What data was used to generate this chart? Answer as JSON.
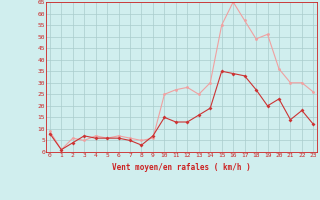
{
  "x": [
    0,
    1,
    2,
    3,
    4,
    5,
    6,
    7,
    8,
    9,
    10,
    11,
    12,
    13,
    14,
    15,
    16,
    17,
    18,
    19,
    20,
    21,
    22,
    23
  ],
  "wind_avg": [
    8,
    1,
    4,
    7,
    6,
    6,
    6,
    5,
    3,
    7,
    15,
    13,
    13,
    16,
    19,
    35,
    34,
    33,
    27,
    20,
    23,
    14,
    18,
    12
  ],
  "wind_gust": [
    9,
    1,
    6,
    5,
    7,
    6,
    7,
    6,
    5,
    6,
    25,
    27,
    28,
    25,
    30,
    55,
    65,
    57,
    49,
    51,
    36,
    30,
    30,
    26
  ],
  "avg_color": "#cc3333",
  "gust_color": "#f0a0a0",
  "bg_color": "#d0eeee",
  "grid_color": "#aacccc",
  "axis_color": "#cc2222",
  "xlabel": "Vent moyen/en rafales ( km/h )",
  "ylim": [
    0,
    65
  ],
  "yticks": [
    0,
    5,
    10,
    15,
    20,
    25,
    30,
    35,
    40,
    45,
    50,
    55,
    60,
    65
  ],
  "xticks": [
    0,
    1,
    2,
    3,
    4,
    5,
    6,
    7,
    8,
    9,
    10,
    11,
    12,
    13,
    14,
    15,
    16,
    17,
    18,
    19,
    20,
    21,
    22,
    23
  ]
}
